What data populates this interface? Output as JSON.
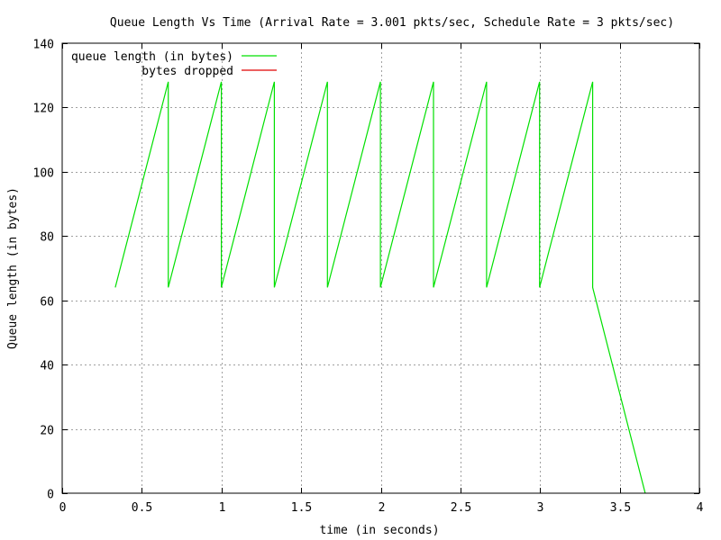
{
  "chart_data": {
    "type": "line",
    "title": "Queue Length Vs Time (Arrival Rate = 3.001 pkts/sec, Schedule Rate = 3 pkts/sec)",
    "xlabel": "time (in seconds)",
    "ylabel": "Queue length (in bytes)",
    "xlim": [
      0,
      4
    ],
    "ylim": [
      0,
      140
    ],
    "x_ticks": [
      "0",
      "0.5",
      "1",
      "1.5",
      "2",
      "2.5",
      "3",
      "3.5",
      "4"
    ],
    "x_tick_values": [
      0,
      0.5,
      1,
      1.5,
      2,
      2.5,
      3,
      3.5,
      4
    ],
    "y_ticks": [
      "0",
      "20",
      "40",
      "60",
      "80",
      "100",
      "120",
      "140"
    ],
    "y_tick_values": [
      0,
      20,
      40,
      60,
      80,
      100,
      120,
      140
    ],
    "grid": true,
    "legend_position": "top-left",
    "series": [
      {
        "name": "queue length (in bytes)",
        "color": "#00e000",
        "points": [
          [
            0.333,
            64
          ],
          [
            0.666,
            128
          ],
          [
            0.666,
            64
          ],
          [
            0.999,
            128
          ],
          [
            0.999,
            64
          ],
          [
            1.332,
            128
          ],
          [
            1.332,
            64
          ],
          [
            1.665,
            128
          ],
          [
            1.665,
            64
          ],
          [
            1.998,
            128
          ],
          [
            1.998,
            64
          ],
          [
            2.331,
            128
          ],
          [
            2.331,
            64
          ],
          [
            2.664,
            128
          ],
          [
            2.664,
            64
          ],
          [
            2.997,
            128
          ],
          [
            2.997,
            64
          ],
          [
            3.33,
            128
          ],
          [
            3.33,
            64
          ],
          [
            3.66,
            0
          ]
        ]
      },
      {
        "name": "bytes dropped",
        "color": "#e00000",
        "points": []
      }
    ]
  }
}
